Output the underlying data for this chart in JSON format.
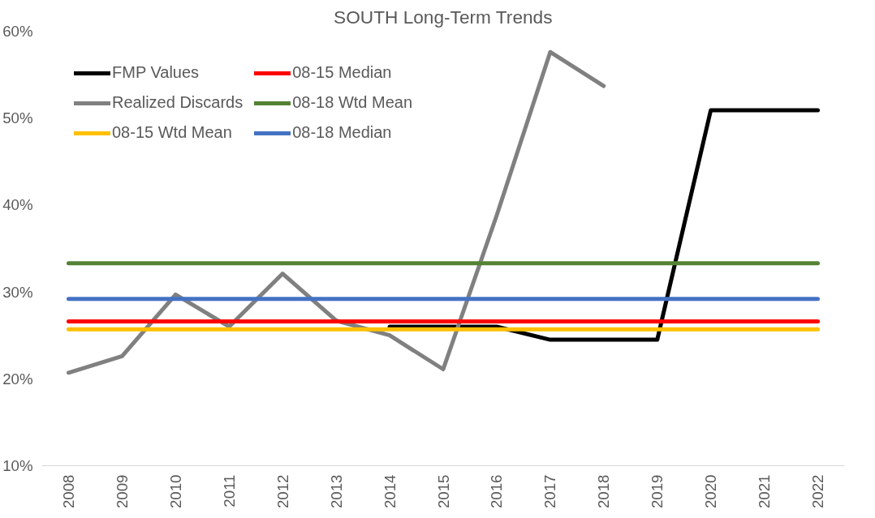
{
  "chart_data": {
    "type": "line",
    "title": "SOUTH Long-Term Trends",
    "categories": [
      "2008",
      "2009",
      "2010",
      "2011",
      "2012",
      "2013",
      "2014",
      "2015",
      "2016",
      "2017",
      "2018",
      "2019",
      "2020",
      "2021",
      "2022"
    ],
    "series": [
      {
        "name": "FMP Values",
        "color": "#000000",
        "values": [
          null,
          null,
          null,
          null,
          null,
          null,
          26.0,
          26.0,
          26.0,
          24.5,
          24.5,
          24.5,
          50.9,
          50.9,
          50.9
        ]
      },
      {
        "name": "Realized Discards",
        "color": "#808080",
        "values": [
          20.7,
          22.6,
          29.7,
          26.0,
          32.1,
          26.7,
          25.0,
          21.1,
          38.8,
          57.6,
          53.7,
          null,
          null,
          null,
          null
        ]
      },
      {
        "name": "08-15 Wtd Mean",
        "color": "#ffc000",
        "values": [
          25.7,
          25.7,
          25.7,
          25.7,
          25.7,
          25.7,
          25.7,
          25.7,
          25.7,
          25.7,
          25.7,
          25.7,
          25.7,
          25.7,
          25.7
        ]
      },
      {
        "name": "08-15 Median",
        "color": "#ff0000",
        "values": [
          26.6,
          26.6,
          26.6,
          26.6,
          26.6,
          26.6,
          26.6,
          26.6,
          26.6,
          26.6,
          26.6,
          26.6,
          26.6,
          26.6,
          26.6
        ]
      },
      {
        "name": "08-18 Wtd Mean",
        "color": "#548235",
        "values": [
          33.3,
          33.3,
          33.3,
          33.3,
          33.3,
          33.3,
          33.3,
          33.3,
          33.3,
          33.3,
          33.3,
          33.3,
          33.3,
          33.3,
          33.3
        ]
      },
      {
        "name": "08-18 Median",
        "color": "#4472c4",
        "values": [
          29.2,
          29.2,
          29.2,
          29.2,
          29.2,
          29.2,
          29.2,
          29.2,
          29.2,
          29.2,
          29.2,
          29.2,
          29.2,
          29.2,
          29.2
        ]
      }
    ],
    "ylim": [
      10,
      60
    ],
    "yticks": [
      {
        "value": 10,
        "label": "10%"
      },
      {
        "value": 20,
        "label": "20%"
      },
      {
        "value": 30,
        "label": "30%"
      },
      {
        "value": 40,
        "label": "40%"
      },
      {
        "value": 50,
        "label": "50%"
      },
      {
        "value": 60,
        "label": "60%"
      }
    ],
    "legend": "top left",
    "grid": false
  }
}
